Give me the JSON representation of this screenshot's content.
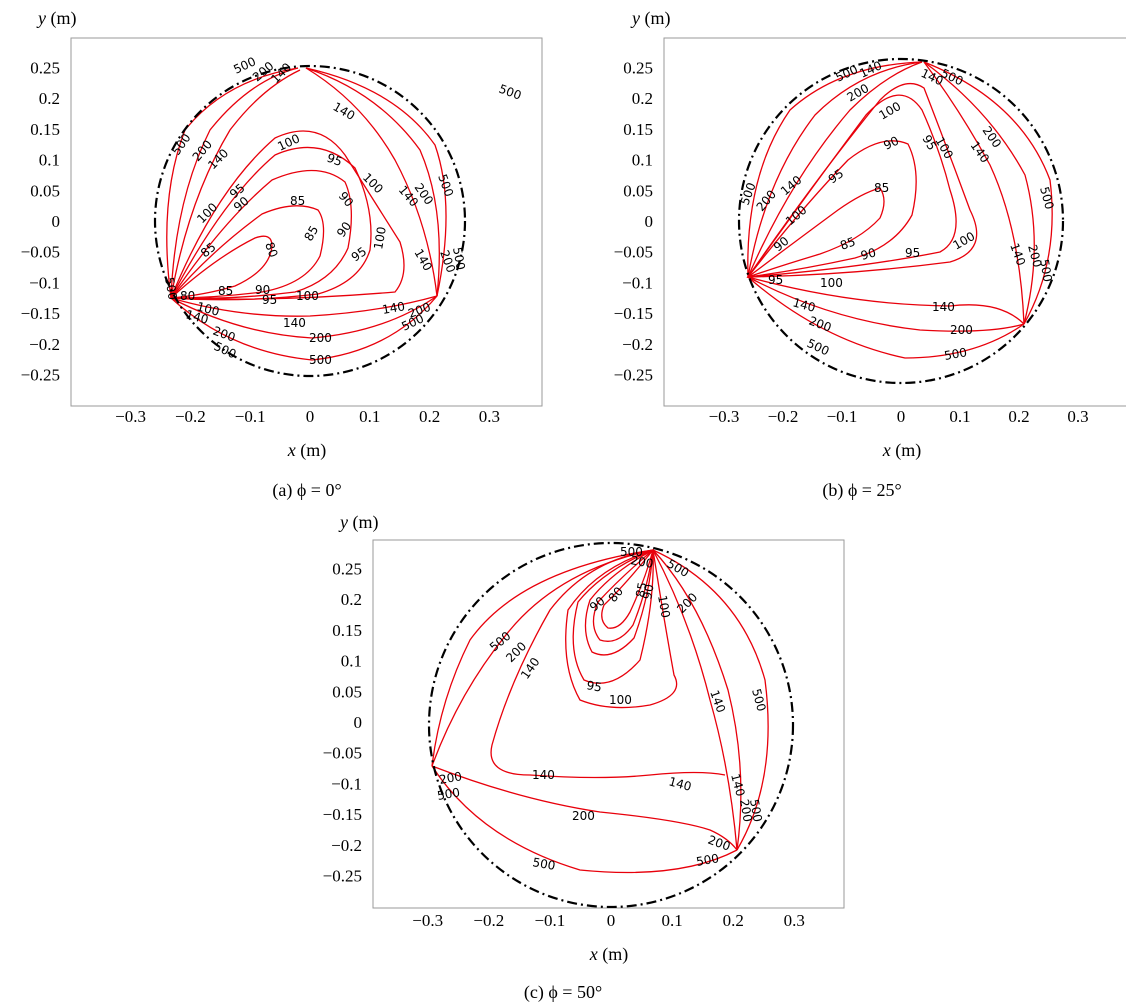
{
  "chart_data": [
    {
      "type": "contour",
      "caption": "(a) ϕ = 0°",
      "xlabel_var": "x",
      "xlabel_unit": " (m)",
      "ylabel_var": "y",
      "ylabel_unit": " (m)",
      "x_ticks": [
        -0.3,
        -0.2,
        -0.1,
        0,
        0.1,
        0.2,
        0.3
      ],
      "y_ticks": [
        0.25,
        0.2,
        0.15,
        0.1,
        0.05,
        0,
        -0.05,
        -0.1,
        -0.15,
        -0.2,
        -0.25
      ],
      "xlim": [
        -0.38,
        0.38
      ],
      "ylim": [
        -0.3,
        0.3
      ],
      "boundary": {
        "shape": "circle",
        "center": [
          0.0,
          0.0
        ],
        "radius": 0.248,
        "style": "dash-dot"
      },
      "vertices": [
        [
          0.0,
          0.248
        ],
        [
          -0.215,
          -0.124
        ],
        [
          0.215,
          -0.124
        ]
      ],
      "contour_levels": [
        80,
        85,
        90,
        95,
        100,
        140,
        200,
        500
      ],
      "line_color": "#e8000b",
      "minimum_location": [
        -0.03,
        -0.035
      ]
    },
    {
      "type": "contour",
      "caption": "(b) ϕ = 25°",
      "xlabel_var": "x",
      "xlabel_unit": " (m)",
      "ylabel_var": "y",
      "ylabel_unit": " (m)",
      "x_ticks": [
        -0.3,
        -0.2,
        -0.1,
        0,
        0.1,
        0.2,
        0.3
      ],
      "y_ticks": [
        0.25,
        0.2,
        0.15,
        0.1,
        0.05,
        0,
        -0.05,
        -0.1,
        -0.15,
        -0.2,
        -0.25
      ],
      "xlim": [
        -0.38,
        0.38
      ],
      "ylim": [
        -0.3,
        0.3
      ],
      "boundary": {
        "shape": "circle",
        "center": [
          0.0,
          0.0
        ],
        "radius": 0.262,
        "style": "dash-dot"
      },
      "vertices": [
        [
          0.035,
          0.26
        ],
        [
          -0.25,
          -0.09
        ],
        [
          0.2,
          -0.165
        ]
      ],
      "contour_levels": [
        85,
        90,
        95,
        100,
        140,
        200,
        500
      ],
      "line_color": "#e8000b",
      "minimum_location": [
        -0.02,
        0.0
      ]
    },
    {
      "type": "contour",
      "caption": "(c) ϕ = 50°",
      "xlabel_var": "x",
      "xlabel_unit": " (m)",
      "ylabel_var": "y",
      "ylabel_unit": " (m)",
      "x_ticks": [
        -0.3,
        -0.2,
        -0.1,
        0,
        0.1,
        0.2,
        0.3
      ],
      "y_ticks": [
        0.25,
        0.2,
        0.15,
        0.1,
        0.05,
        0,
        -0.05,
        -0.1,
        -0.15,
        -0.2,
        -0.25
      ],
      "xlim": [
        -0.38,
        0.38
      ],
      "ylim": [
        -0.3,
        0.3
      ],
      "boundary": {
        "shape": "circle",
        "center": [
          0.0,
          0.0
        ],
        "radius": 0.29,
        "style": "dash-dot"
      },
      "vertices": [
        [
          0.072,
          0.282
        ],
        [
          -0.28,
          -0.072
        ],
        [
          0.21,
          -0.205
        ]
      ],
      "contour_levels": [
        80,
        85,
        90,
        95,
        100,
        140,
        200,
        500
      ],
      "line_color": "#e8000b",
      "minimum_location": [
        0.045,
        0.21
      ]
    }
  ]
}
